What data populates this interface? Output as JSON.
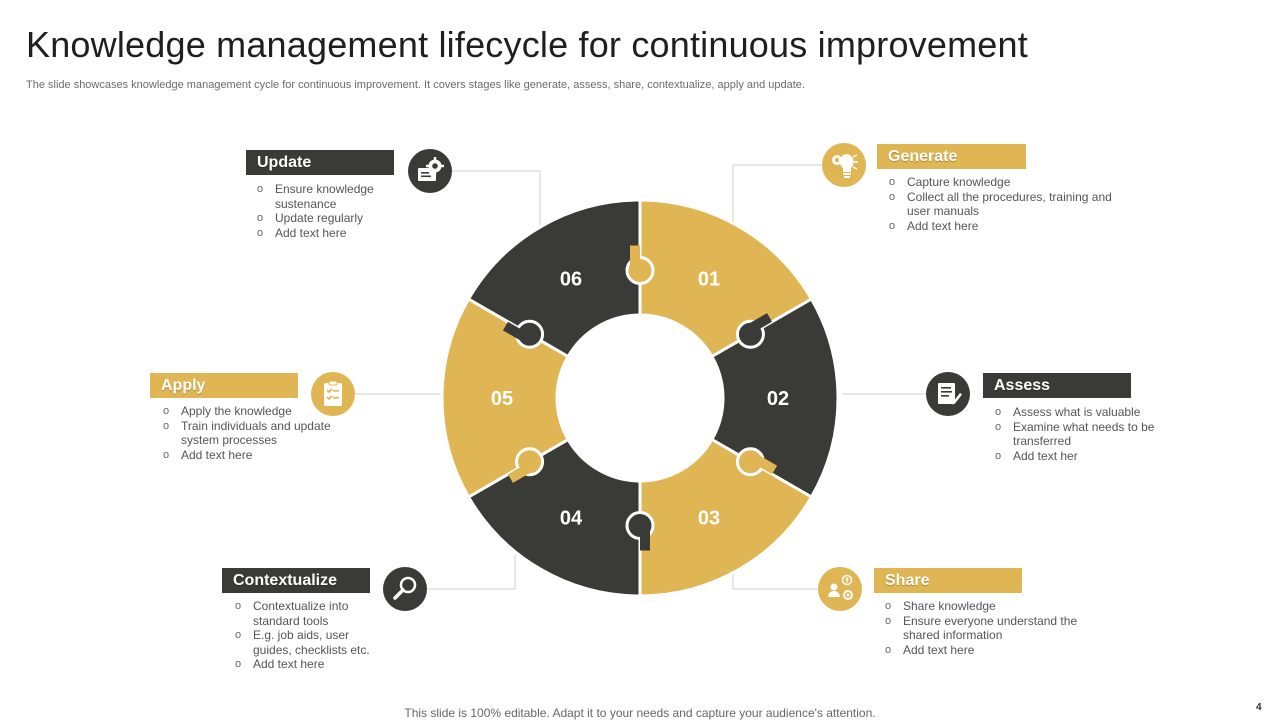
{
  "title": "Knowledge management lifecycle for continuous improvement",
  "subtitle": "The slide showcases knowledge management cycle for continuous improvement. It covers stages like generate, assess, share, contextualize, apply and update.",
  "colors": {
    "dark": "#3a3a36",
    "gold": "#e0b654"
  },
  "segments": [
    {
      "number": "01",
      "color": "gold"
    },
    {
      "number": "02",
      "color": "dark"
    },
    {
      "number": "03",
      "color": "gold"
    },
    {
      "number": "04",
      "color": "dark"
    },
    {
      "number": "05",
      "color": "gold"
    },
    {
      "number": "06",
      "color": "dark"
    }
  ],
  "stages": {
    "generate": {
      "title": "Generate",
      "icon": "lightbulb-gear-icon",
      "bullets": [
        "Capture knowledge",
        "Collect all the procedures, training and user manuals",
        "Add text here"
      ]
    },
    "assess": {
      "title": "Assess",
      "icon": "document-pen-icon",
      "bullets": [
        "Assess what is valuable",
        "Examine what needs to be transferred",
        "Add text her"
      ]
    },
    "share": {
      "title": "Share",
      "icon": "people-dollar-icon",
      "bullets": [
        "Share knowledge",
        "Ensure everyone understand the shared information",
        "Add text here"
      ]
    },
    "contextualize": {
      "title": "Contextualize",
      "icon": "magnifier-icon",
      "bullets": [
        "Contextualize into standard tools",
        "E.g. job aids, user guides, checklists etc.",
        "Add text here"
      ]
    },
    "apply": {
      "title": "Apply",
      "icon": "clipboard-icon",
      "bullets": [
        "Apply the knowledge",
        "Train individuals and update system processes",
        "Add text here"
      ]
    },
    "update": {
      "title": "Update",
      "icon": "gear-monitor-icon",
      "bullets": [
        "Ensure knowledge sustenance",
        "Update regularly",
        "Add text here"
      ]
    }
  },
  "footer": "This slide is 100% editable. Adapt it to your needs and capture your audience's attention.",
  "page_number": "4"
}
